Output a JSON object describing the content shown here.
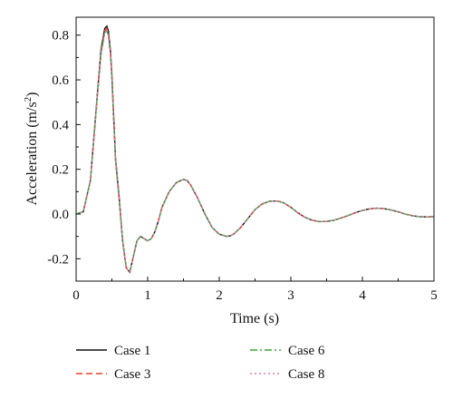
{
  "chart_data": {
    "type": "line",
    "title": "",
    "xlabel": "Time (s)",
    "ylabel_main": "Acceleration (m/s",
    "ylabel_sup": "2",
    "ylabel_tail": ")",
    "xlim": [
      0,
      5
    ],
    "ylim": [
      -0.3,
      0.88
    ],
    "xticks": [
      0,
      1,
      2,
      3,
      4,
      5
    ],
    "xtick_labels": [
      "0",
      "1",
      "2",
      "3",
      "4",
      "5"
    ],
    "yticks": [
      -0.2,
      0.0,
      0.2,
      0.4,
      0.6,
      0.8
    ],
    "ytick_labels": [
      "-0.2",
      "0.0",
      "0.2",
      "0.4",
      "0.6",
      "0.8"
    ],
    "grid": false,
    "legend_position": "below plot, two columns",
    "x": [
      0,
      0.1,
      0.2,
      0.3,
      0.35,
      0.4,
      0.43,
      0.45,
      0.48,
      0.5,
      0.55,
      0.6,
      0.65,
      0.7,
      0.75,
      0.8,
      0.85,
      0.9,
      0.95,
      1.0,
      1.05,
      1.1,
      1.15,
      1.2,
      1.3,
      1.4,
      1.5,
      1.55,
      1.6,
      1.7,
      1.8,
      1.9,
      2.0,
      2.1,
      2.15,
      2.2,
      2.3,
      2.4,
      2.5,
      2.6,
      2.7,
      2.8,
      2.85,
      2.9,
      3.0,
      3.1,
      3.2,
      3.3,
      3.4,
      3.5,
      3.6,
      3.7,
      3.8,
      3.9,
      4.0,
      4.1,
      4.2,
      4.3,
      4.4,
      4.5,
      4.6,
      4.7,
      4.8,
      4.9,
      5.0
    ],
    "series": [
      {
        "name": "Case 1",
        "color": "#111111",
        "dash": "solid",
        "values": [
          0,
          0.01,
          0.15,
          0.55,
          0.74,
          0.83,
          0.84,
          0.82,
          0.73,
          0.62,
          0.25,
          0.08,
          -0.12,
          -0.24,
          -0.26,
          -0.19,
          -0.12,
          -0.1,
          -0.11,
          -0.12,
          -0.11,
          -0.08,
          -0.03,
          0.03,
          0.1,
          0.14,
          0.155,
          0.15,
          0.13,
          0.07,
          0.0,
          -0.06,
          -0.09,
          -0.1,
          -0.098,
          -0.09,
          -0.06,
          -0.02,
          0.02,
          0.045,
          0.057,
          0.058,
          0.055,
          0.05,
          0.03,
          0.005,
          -0.015,
          -0.028,
          -0.034,
          -0.033,
          -0.028,
          -0.018,
          -0.007,
          0.006,
          0.016,
          0.023,
          0.026,
          0.024,
          0.018,
          0.01,
          0.0,
          -0.008,
          -0.012,
          -0.013,
          -0.012
        ]
      },
      {
        "name": "Case 3",
        "color": "#e8402a",
        "dash": "dashed",
        "values": [
          0,
          0.01,
          0.15,
          0.54,
          0.73,
          0.82,
          0.83,
          0.81,
          0.72,
          0.61,
          0.25,
          0.07,
          -0.12,
          -0.24,
          -0.26,
          -0.19,
          -0.12,
          -0.1,
          -0.11,
          -0.12,
          -0.11,
          -0.08,
          -0.03,
          0.03,
          0.1,
          0.14,
          0.155,
          0.15,
          0.13,
          0.07,
          0.0,
          -0.06,
          -0.09,
          -0.1,
          -0.098,
          -0.09,
          -0.06,
          -0.02,
          0.02,
          0.045,
          0.057,
          0.058,
          0.055,
          0.05,
          0.03,
          0.005,
          -0.015,
          -0.028,
          -0.034,
          -0.033,
          -0.028,
          -0.018,
          -0.007,
          0.006,
          0.016,
          0.023,
          0.026,
          0.024,
          0.018,
          0.01,
          0.0,
          -0.008,
          -0.012,
          -0.013,
          -0.012
        ]
      },
      {
        "name": "Case 6",
        "color": "#3aa63a",
        "dash": "dashdot",
        "values": [
          0,
          0.01,
          0.15,
          0.54,
          0.72,
          0.81,
          0.82,
          0.8,
          0.71,
          0.6,
          0.24,
          0.07,
          -0.12,
          -0.24,
          -0.26,
          -0.19,
          -0.12,
          -0.1,
          -0.11,
          -0.12,
          -0.11,
          -0.08,
          -0.03,
          0.03,
          0.1,
          0.14,
          0.155,
          0.15,
          0.13,
          0.07,
          0.0,
          -0.06,
          -0.09,
          -0.1,
          -0.098,
          -0.09,
          -0.06,
          -0.02,
          0.02,
          0.045,
          0.057,
          0.058,
          0.055,
          0.05,
          0.03,
          0.005,
          -0.015,
          -0.028,
          -0.034,
          -0.033,
          -0.028,
          -0.018,
          -0.007,
          0.006,
          0.016,
          0.023,
          0.026,
          0.024,
          0.018,
          0.01,
          0.0,
          -0.008,
          -0.012,
          -0.013,
          -0.012
        ]
      },
      {
        "name": "Case 8",
        "color": "#d97fc6",
        "dash": "dotted",
        "values": [
          0,
          0.01,
          0.15,
          0.54,
          0.72,
          0.81,
          0.82,
          0.8,
          0.71,
          0.6,
          0.24,
          0.07,
          -0.12,
          -0.24,
          -0.26,
          -0.19,
          -0.12,
          -0.1,
          -0.11,
          -0.12,
          -0.11,
          -0.08,
          -0.03,
          0.03,
          0.1,
          0.14,
          0.155,
          0.15,
          0.13,
          0.07,
          0.0,
          -0.06,
          -0.09,
          -0.1,
          -0.098,
          -0.09,
          -0.06,
          -0.02,
          0.02,
          0.045,
          0.057,
          0.058,
          0.055,
          0.05,
          0.03,
          0.005,
          -0.015,
          -0.028,
          -0.034,
          -0.033,
          -0.028,
          -0.018,
          -0.007,
          0.006,
          0.016,
          0.023,
          0.026,
          0.024,
          0.018,
          0.01,
          0.0,
          -0.008,
          -0.012,
          -0.013,
          -0.012
        ]
      }
    ]
  }
}
